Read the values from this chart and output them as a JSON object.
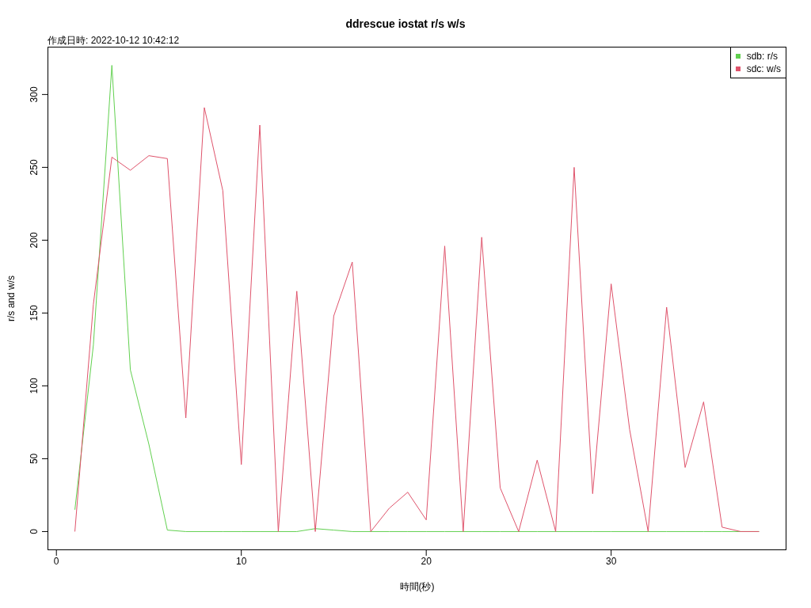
{
  "chart_data": {
    "type": "line",
    "title": "ddrescue iostat r/s w/s",
    "annotations": [
      "作成日時: 2022-10-12 10:42:12"
    ],
    "xlabel": "時間(秒)",
    "ylabel": "r/s and w/s",
    "x": [
      1,
      2,
      3,
      4,
      5,
      6,
      7,
      8,
      9,
      10,
      11,
      12,
      13,
      14,
      15,
      16,
      17,
      18,
      19,
      20,
      21,
      22,
      23,
      24,
      25,
      26,
      27,
      28,
      29,
      30,
      31,
      32,
      33,
      34,
      35,
      36,
      37,
      38
    ],
    "series": [
      {
        "name": "sdb: r/s",
        "color": "#61d04f",
        "values": [
          15,
          128,
          320,
          111,
          60,
          1,
          0,
          0,
          0,
          0,
          0,
          0,
          0,
          2,
          1,
          0,
          0,
          0,
          0,
          0,
          0,
          0,
          0,
          0,
          0,
          0,
          0,
          0,
          0,
          0,
          0,
          0,
          0,
          0,
          0,
          0,
          0,
          0
        ]
      },
      {
        "name": "sdc: w/s",
        "color": "#df536b",
        "values": [
          0,
          156,
          257,
          248,
          258,
          256,
          78,
          291,
          234,
          46,
          279,
          0,
          165,
          0,
          148,
          185,
          0,
          16,
          27,
          8,
          196,
          0,
          202,
          30,
          0,
          49,
          0,
          250,
          26,
          170,
          70,
          0,
          154,
          44,
          89,
          3,
          0,
          0
        ]
      }
    ],
    "xlim": [
      -0.48,
      39.48
    ],
    "xticks": [
      0,
      10,
      20,
      30
    ],
    "ylim": [
      -12.8,
      332.8
    ],
    "yticks": [
      0,
      50,
      100,
      150,
      200,
      250,
      300
    ],
    "legend": "top right",
    "marker": "none",
    "line_style": "solid"
  }
}
